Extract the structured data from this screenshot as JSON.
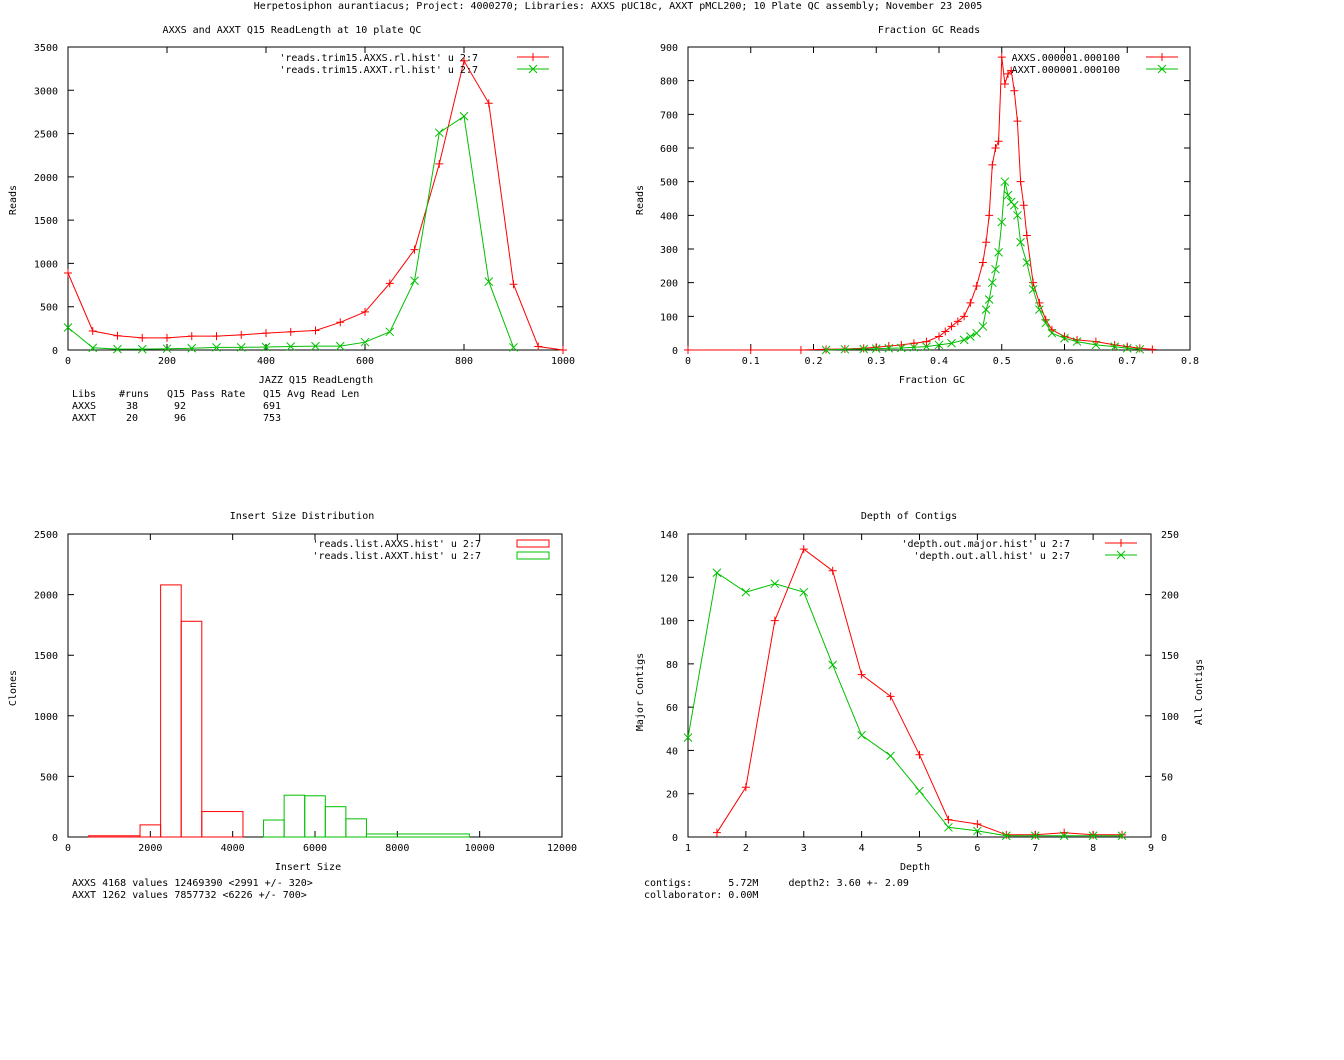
{
  "page_title": "Herpetosiphon aurantiacus; Project: 4000270; Libraries: AXXS pUC18c, AXXT pMCL200; 10 Plate QC assembly; November 23 2005",
  "colors": {
    "red": "#ff0000",
    "green": "#00c000",
    "axis": "#000000"
  },
  "chart_data": [
    {
      "id": "readlength",
      "type": "line",
      "title": "AXXS and AXXT Q15 ReadLength at 10 plate QC",
      "xlabel": "JAZZ Q15 ReadLength",
      "ylabel": "Reads",
      "xlim": [
        0,
        1000
      ],
      "ylim": [
        0,
        3500
      ],
      "xticks": [
        0,
        200,
        400,
        600,
        800,
        1000
      ],
      "yticks": [
        0,
        500,
        1000,
        1500,
        2000,
        2500,
        3000,
        3500
      ],
      "series": [
        {
          "name": "'reads.trim15.AXXS.rl.hist' u 2:7",
          "color": "#ff0000",
          "marker": "plus",
          "x": [
            0,
            50,
            100,
            150,
            200,
            250,
            300,
            350,
            400,
            450,
            500,
            550,
            600,
            650,
            700,
            750,
            800,
            850,
            900,
            950,
            1000
          ],
          "y": [
            890,
            220,
            165,
            140,
            140,
            160,
            160,
            175,
            195,
            210,
            225,
            320,
            440,
            770,
            1160,
            2150,
            3340,
            2850,
            760,
            40,
            0
          ]
        },
        {
          "name": "'reads.trim15.AXXT.rl.hist' u 2:7",
          "color": "#00c000",
          "marker": "cross",
          "x": [
            0,
            50,
            100,
            150,
            200,
            250,
            300,
            350,
            400,
            450,
            500,
            550,
            600,
            650,
            700,
            750,
            800,
            850,
            900
          ],
          "y": [
            260,
            25,
            10,
            10,
            15,
            20,
            30,
            30,
            35,
            40,
            45,
            45,
            90,
            210,
            800,
            2510,
            2700,
            790,
            30
          ]
        }
      ],
      "stats": {
        "headers": [
          "Libs",
          "#runs",
          "Q15 Pass Rate",
          "Q15 Avg Read Len"
        ],
        "rows": [
          [
            "AXXS",
            "38",
            "92",
            "691"
          ],
          [
            "AXXT",
            "20",
            "96",
            "753"
          ]
        ]
      }
    },
    {
      "id": "gc",
      "type": "line",
      "title": "Fraction GC Reads",
      "xlabel": "Fraction GC",
      "ylabel": "Reads",
      "xlim": [
        0,
        0.8
      ],
      "ylim": [
        0,
        900
      ],
      "xticks": [
        "0",
        "0.1",
        "0.2",
        "0.3",
        "0.4",
        "0.5",
        "0.6",
        "0.7",
        "0.8"
      ],
      "yticks": [
        0,
        100,
        200,
        300,
        400,
        500,
        600,
        700,
        800,
        900
      ],
      "series": [
        {
          "name": "AXXS.000001.000100",
          "color": "#ff0000",
          "marker": "plus",
          "x": [
            0,
            0.1,
            0.18,
            0.22,
            0.25,
            0.28,
            0.3,
            0.32,
            0.34,
            0.36,
            0.38,
            0.4,
            0.41,
            0.42,
            0.43,
            0.44,
            0.45,
            0.46,
            0.47,
            0.475,
            0.48,
            0.485,
            0.49,
            0.495,
            0.5,
            0.505,
            0.51,
            0.515,
            0.52,
            0.525,
            0.53,
            0.535,
            0.54,
            0.55,
            0.56,
            0.57,
            0.58,
            0.6,
            0.62,
            0.65,
            0.68,
            0.7,
            0.72,
            0.74
          ],
          "y": [
            0,
            0,
            0,
            2,
            3,
            5,
            8,
            12,
            15,
            20,
            25,
            40,
            55,
            70,
            85,
            100,
            140,
            190,
            260,
            320,
            400,
            550,
            600,
            620,
            870,
            790,
            820,
            830,
            770,
            680,
            500,
            430,
            340,
            200,
            140,
            90,
            60,
            40,
            30,
            25,
            15,
            10,
            5,
            2
          ]
        },
        {
          "name": "AXXT.000001.000100",
          "color": "#00c000",
          "marker": "cross",
          "x": [
            0.22,
            0.25,
            0.28,
            0.3,
            0.32,
            0.34,
            0.36,
            0.38,
            0.4,
            0.42,
            0.44,
            0.45,
            0.46,
            0.47,
            0.475,
            0.48,
            0.485,
            0.49,
            0.495,
            0.5,
            0.505,
            0.51,
            0.515,
            0.52,
            0.525,
            0.53,
            0.54,
            0.55,
            0.56,
            0.57,
            0.58,
            0.6,
            0.62,
            0.65,
            0.68,
            0.7,
            0.72
          ],
          "y": [
            0,
            2,
            3,
            4,
            5,
            6,
            8,
            10,
            15,
            20,
            30,
            40,
            50,
            70,
            120,
            150,
            200,
            240,
            290,
            380,
            500,
            460,
            440,
            430,
            400,
            320,
            260,
            180,
            120,
            80,
            50,
            35,
            25,
            15,
            10,
            5,
            2
          ]
        }
      ]
    },
    {
      "id": "insert",
      "type": "bar",
      "title": "Insert Size Distribution",
      "xlabel": "Insert Size",
      "ylabel": "Clones",
      "xlim": [
        0,
        12000
      ],
      "ylim": [
        0,
        2500
      ],
      "xticks": [
        0,
        2000,
        4000,
        6000,
        8000,
        10000,
        12000
      ],
      "yticks": [
        0,
        500,
        1000,
        1500,
        2000,
        2500
      ],
      "series": [
        {
          "name": "'reads.list.AXXS.hist' u 2:7",
          "color": "#ff0000",
          "edges": [
            500,
            1750,
            2250,
            2750,
            3250,
            4250
          ],
          "values": [
            10,
            100,
            2080,
            1780,
            210
          ]
        },
        {
          "name": "'reads.list.AXXT.hist' u 2:7",
          "color": "#00c000",
          "edges": [
            4750,
            5250,
            5750,
            6250,
            6750,
            7250,
            9750
          ],
          "values": [
            140,
            345,
            340,
            250,
            150,
            25
          ]
        }
      ],
      "stats_lines": [
        "AXXS 4168 values 12469390 <2991 +/- 320>",
        "AXXT 1262 values 7857732 <6226 +/- 700>"
      ]
    },
    {
      "id": "depth",
      "type": "line",
      "title": "Depth of Contigs",
      "xlabel": "Depth",
      "ylabel": "Major Contigs",
      "y2label": "All Contigs",
      "xlim": [
        1,
        9
      ],
      "ylim": [
        0,
        140
      ],
      "y2lim": [
        0,
        250
      ],
      "xticks": [
        1,
        2,
        3,
        4,
        5,
        6,
        7,
        8,
        9
      ],
      "yticks": [
        0,
        20,
        40,
        60,
        80,
        100,
        120,
        140
      ],
      "y2ticks": [
        0,
        50,
        100,
        150,
        200,
        250
      ],
      "series": [
        {
          "name": "'depth.out.major.hist' u 2:7",
          "color": "#ff0000",
          "marker": "plus",
          "axis": "y",
          "x": [
            1.5,
            2,
            2.5,
            3,
            3.5,
            4,
            4.5,
            5,
            5.5,
            6,
            6.5,
            7,
            7.5,
            8,
            8.5
          ],
          "y": [
            2,
            23,
            100,
            133,
            123,
            75,
            65,
            38,
            8,
            6,
            1,
            1,
            2,
            1,
            1
          ]
        },
        {
          "name": "'depth.out.all.hist' u 2:7",
          "color": "#00c000",
          "marker": "cross",
          "axis": "y2",
          "x": [
            1,
            1.5,
            2,
            2.5,
            3,
            3.5,
            4,
            4.5,
            5,
            5.5,
            6,
            6.5,
            7,
            7.5,
            8,
            8.5
          ],
          "y": [
            82,
            218,
            202,
            209,
            202,
            142,
            84,
            67,
            38,
            8,
            5,
            1,
            1,
            1,
            1,
            1
          ]
        }
      ],
      "stats_lines": [
        "contigs:      5.72M     depth2: 3.60 +- 2.09",
        "collaborator: 0.00M"
      ]
    }
  ]
}
